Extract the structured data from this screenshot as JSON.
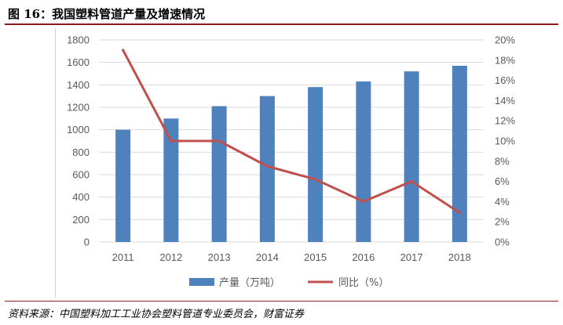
{
  "header": {
    "title": "图 16：我国塑料管道产量及增速情况"
  },
  "footer": {
    "source": "资料来源：中国塑料加工工业协会塑料管道专业委员会，财富证券"
  },
  "chart_data": {
    "type": "bar",
    "categories": [
      "2011",
      "2012",
      "2013",
      "2014",
      "2015",
      "2016",
      "2017",
      "2018"
    ],
    "series": [
      {
        "name": "产量（万吨）",
        "type": "bar",
        "axis": "left",
        "color": "#4f81bd",
        "values": [
          1000,
          1100,
          1210,
          1300,
          1380,
          1430,
          1520,
          1570
        ]
      },
      {
        "name": "同比（%）",
        "type": "line",
        "axis": "right",
        "color": "#c0504d",
        "values": [
          19,
          10,
          10,
          7.5,
          6.2,
          4,
          6,
          2.9
        ]
      }
    ],
    "y_left": {
      "min": 0,
      "max": 1800,
      "step": 200,
      "ticks": [
        "0",
        "200",
        "400",
        "600",
        "800",
        "1000",
        "1200",
        "1400",
        "1600",
        "1800"
      ]
    },
    "y_right": {
      "min": 0,
      "max": 20,
      "step": 2,
      "ticks": [
        "0%",
        "2%",
        "4%",
        "6%",
        "8%",
        "10%",
        "12%",
        "14%",
        "16%",
        "18%",
        "20%"
      ]
    },
    "grid": true,
    "legend_position": "bottom"
  }
}
